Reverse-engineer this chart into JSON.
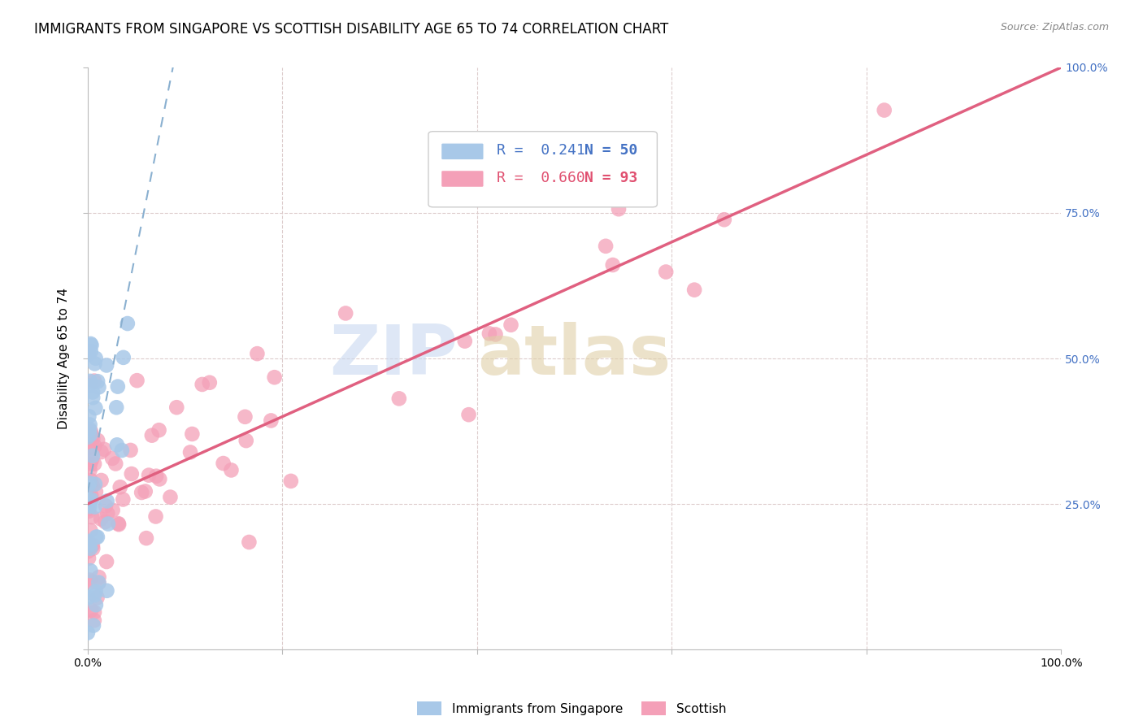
{
  "title": "IMMIGRANTS FROM SINGAPORE VS SCOTTISH DISABILITY AGE 65 TO 74 CORRELATION CHART",
  "source": "Source: ZipAtlas.com",
  "ylabel": "Disability Age 65 to 74",
  "legend_blue_label": "R =  0.241   N = 50",
  "legend_pink_label": "R =  0.660   N = 93",
  "legend_blue_r": "R =  0.241",
  "legend_blue_n": "N = 50",
  "legend_pink_r": "R =  0.660",
  "legend_pink_n": "N = 93",
  "blue_color": "#a8c8e8",
  "pink_color": "#f4a0b8",
  "blue_line_color": "#8ab0d0",
  "pink_line_color": "#e06080",
  "title_fontsize": 12,
  "axis_label_fontsize": 11,
  "tick_fontsize": 10,
  "legend_fontsize": 13
}
